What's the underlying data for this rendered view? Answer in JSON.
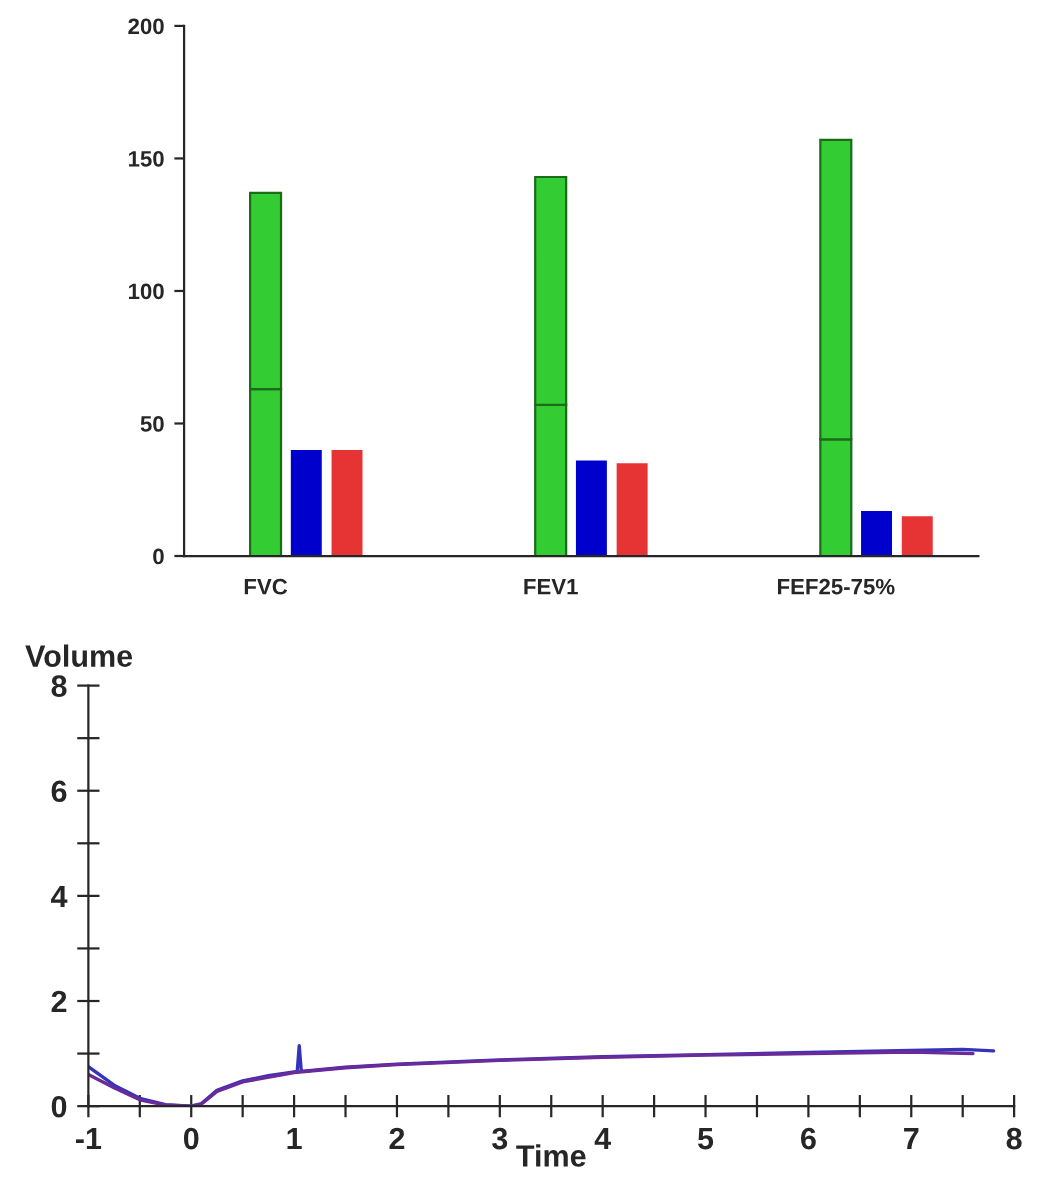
{
  "chart_data": [
    {
      "type": "bar",
      "stacked": true,
      "categories": [
        "FVC",
        null,
        null,
        null,
        null,
        null,
        null,
        "FEV1",
        null,
        null,
        null,
        null,
        null,
        null,
        "FEF25-75%",
        null,
        null
      ],
      "series": [
        {
          "color": "#33cc33",
          "values": [
            63,
            null,
            null,
            null,
            null,
            null,
            null,
            57,
            null,
            null,
            null,
            null,
            null,
            null,
            44,
            null,
            null
          ]
        },
        {
          "color": "#33cc33",
          "values": [
            74,
            null,
            null,
            null,
            null,
            null,
            null,
            86,
            null,
            null,
            null,
            null,
            null,
            null,
            113,
            null,
            null
          ]
        },
        {
          "color": "#0000cc",
          "values": [
            null,
            40,
            null,
            null,
            null,
            null,
            null,
            null,
            36,
            null,
            null,
            null,
            null,
            null,
            null,
            17,
            null
          ]
        },
        {
          "color": "#e63333",
          "values": [
            null,
            null,
            40,
            null,
            null,
            null,
            null,
            null,
            null,
            35,
            null,
            null,
            null,
            null,
            null,
            null,
            15
          ]
        }
      ],
      "ylim": [
        0,
        200
      ],
      "yticks": [
        0,
        50,
        100,
        150,
        200
      ],
      "grid": false,
      "legend": false
    },
    {
      "type": "line",
      "xlabel": "Time",
      "ylabel": "Volume",
      "series": [
        {
          "color": "#3333bb",
          "x": [
            -1,
            -0.75,
            -0.5,
            -0.25,
            0,
            0.1,
            0.25,
            0.5,
            0.75,
            1,
            1.03,
            1.05,
            1.07,
            1.5,
            2,
            3,
            4,
            5,
            6,
            7,
            7.5,
            7.8
          ],
          "values": [
            0.75,
            0.4,
            0.15,
            0.03,
            0,
            0.05,
            0.3,
            0.48,
            0.58,
            0.65,
            0.65,
            1.15,
            0.66,
            0.74,
            0.8,
            0.88,
            0.94,
            0.98,
            1.02,
            1.06,
            1.08,
            1.05
          ]
        },
        {
          "color": "#6a2a9a",
          "x": [
            -1,
            -0.75,
            -0.5,
            -0.25,
            0,
            0.1,
            0.25,
            0.5,
            1,
            1.5,
            2,
            3,
            4,
            5,
            6,
            7,
            7.6
          ],
          "values": [
            0.6,
            0.35,
            0.12,
            0.02,
            0,
            0.04,
            0.28,
            0.46,
            0.64,
            0.73,
            0.79,
            0.87,
            0.93,
            0.97,
            1.0,
            1.03,
            1.0
          ]
        }
      ],
      "xlim": [
        -1,
        8
      ],
      "xticks": [
        -1,
        {
          "value": -0.5,
          "label": null
        },
        0,
        {
          "value": 0.5,
          "label": null
        },
        1,
        {
          "value": 1.5,
          "label": null
        },
        2,
        {
          "value": 2.5,
          "label": null
        },
        3,
        {
          "value": 3.5,
          "label": null
        },
        4,
        {
          "value": 4.5,
          "label": null
        },
        5,
        {
          "value": 5.5,
          "label": null
        },
        6,
        {
          "value": 6.5,
          "label": null
        },
        7,
        {
          "value": 7.5,
          "label": null
        },
        8
      ],
      "ylim": [
        0,
        8
      ],
      "yticks": [
        0,
        {
          "value": 1,
          "label": null
        },
        2,
        {
          "value": 3,
          "label": null
        },
        4,
        {
          "value": 5,
          "label": null
        },
        6,
        {
          "value": 7,
          "label": null
        },
        8
      ],
      "grid": false,
      "legend": false,
      "marker": "none",
      "line_style": "solid"
    }
  ]
}
